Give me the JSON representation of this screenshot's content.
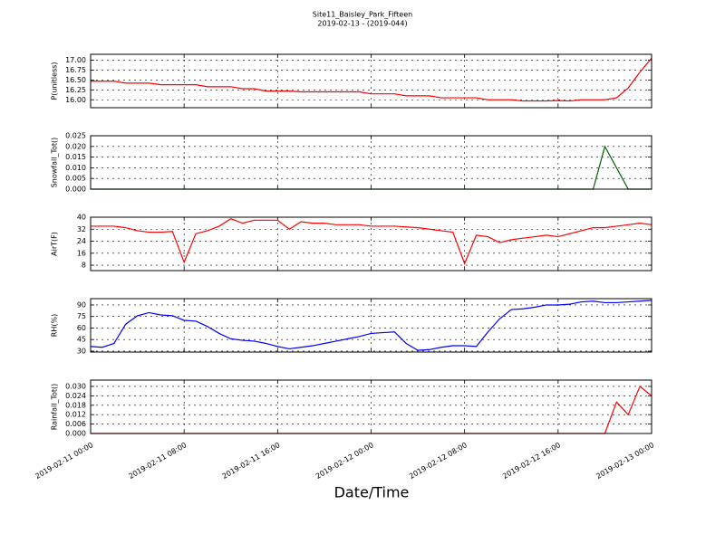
{
  "chart_data": [
    {
      "type": "line",
      "title": "Site11_Baisley_Park_Fifteen",
      "subtitle": "2019-02-13 - (2019-044)",
      "ylabel": "P(unitless)",
      "x": [
        "2019-02-11 00:00",
        "2019-02-11 01:00",
        "2019-02-11 02:00",
        "2019-02-11 03:00",
        "2019-02-11 04:00",
        "2019-02-11 05:00",
        "2019-02-11 06:00",
        "2019-02-11 07:00",
        "2019-02-11 08:00",
        "2019-02-11 09:00",
        "2019-02-11 10:00",
        "2019-02-11 11:00",
        "2019-02-11 12:00",
        "2019-02-11 13:00",
        "2019-02-11 14:00",
        "2019-02-11 15:00",
        "2019-02-11 16:00",
        "2019-02-11 17:00",
        "2019-02-11 18:00",
        "2019-02-11 19:00",
        "2019-02-11 20:00",
        "2019-02-11 21:00",
        "2019-02-11 22:00",
        "2019-02-11 23:00",
        "2019-02-12 00:00",
        "2019-02-12 01:00",
        "2019-02-12 02:00",
        "2019-02-12 03:00",
        "2019-02-12 04:00",
        "2019-02-12 05:00",
        "2019-02-12 06:00",
        "2019-02-12 07:00",
        "2019-02-12 08:00",
        "2019-02-12 09:00",
        "2019-02-12 10:00",
        "2019-02-12 11:00",
        "2019-02-12 12:00",
        "2019-02-12 13:00",
        "2019-02-12 14:00",
        "2019-02-12 15:00",
        "2019-02-12 16:00",
        "2019-02-12 17:00",
        "2019-02-12 18:00",
        "2019-02-12 19:00",
        "2019-02-12 20:00",
        "2019-02-12 21:00",
        "2019-02-12 22:00",
        "2019-02-12 23:00",
        "2019-02-13 00:00"
      ],
      "series": [
        {
          "color": "#ff0000",
          "values": [
            16.47,
            16.47,
            16.47,
            16.42,
            16.42,
            16.42,
            16.38,
            16.38,
            16.38,
            16.38,
            16.33,
            16.33,
            16.33,
            16.28,
            16.28,
            16.22,
            16.22,
            16.22,
            16.2,
            16.2,
            16.2,
            16.2,
            16.2,
            16.2,
            16.15,
            16.15,
            16.15,
            16.1,
            16.1,
            16.1,
            16.05,
            16.05,
            16.05,
            16.05,
            16.0,
            16.0,
            16.0,
            15.97,
            15.97,
            15.97,
            15.98,
            15.97,
            16.0,
            16.0,
            16.0,
            16.05,
            16.3,
            16.7,
            17.05
          ]
        }
      ],
      "xlim": [
        "2019-02-11 00:00",
        "2019-02-13 00:00"
      ],
      "xticks": [
        "2019-02-11 00:00",
        "2019-02-11 08:00",
        "2019-02-11 16:00",
        "2019-02-12 00:00",
        "2019-02-12 08:00",
        "2019-02-12 16:00",
        "2019-02-13 00:00"
      ],
      "ylim": [
        15.8,
        17.15
      ],
      "yticks": [
        {
          "value": 16,
          "label": "16.00"
        },
        {
          "value": 16.25,
          "label": "16.25"
        },
        {
          "value": 16.5,
          "label": "16.50"
        },
        {
          "value": 16.75,
          "label": "16.75"
        },
        {
          "value": 17,
          "label": "17.00"
        }
      ],
      "grid": true
    },
    {
      "type": "line",
      "ylabel": "Snowfall_Tot()",
      "x": [
        "2019-02-11 00:00",
        "2019-02-11 01:00",
        "2019-02-11 02:00",
        "2019-02-11 03:00",
        "2019-02-11 04:00",
        "2019-02-11 05:00",
        "2019-02-11 06:00",
        "2019-02-11 07:00",
        "2019-02-11 08:00",
        "2019-02-11 09:00",
        "2019-02-11 10:00",
        "2019-02-11 11:00",
        "2019-02-11 12:00",
        "2019-02-11 13:00",
        "2019-02-11 14:00",
        "2019-02-11 15:00",
        "2019-02-11 16:00",
        "2019-02-11 17:00",
        "2019-02-11 18:00",
        "2019-02-11 19:00",
        "2019-02-11 20:00",
        "2019-02-11 21:00",
        "2019-02-11 22:00",
        "2019-02-11 23:00",
        "2019-02-12 00:00",
        "2019-02-12 01:00",
        "2019-02-12 02:00",
        "2019-02-12 03:00",
        "2019-02-12 04:00",
        "2019-02-12 05:00",
        "2019-02-12 06:00",
        "2019-02-12 07:00",
        "2019-02-12 08:00",
        "2019-02-12 09:00",
        "2019-02-12 10:00",
        "2019-02-12 11:00",
        "2019-02-12 12:00",
        "2019-02-12 13:00",
        "2019-02-12 14:00",
        "2019-02-12 15:00",
        "2019-02-12 16:00",
        "2019-02-12 17:00",
        "2019-02-12 18:00",
        "2019-02-12 19:00",
        "2019-02-12 20:00",
        "2019-02-12 21:00",
        "2019-02-12 22:00",
        "2019-02-12 23:00",
        "2019-02-13 00:00"
      ],
      "series": [
        {
          "color": "#006400",
          "values": [
            0,
            0,
            0,
            0,
            0,
            0,
            0,
            0,
            0,
            0,
            0,
            0,
            0,
            0,
            0,
            0,
            0,
            0,
            0,
            0,
            0,
            0,
            0,
            0,
            0,
            0,
            0,
            0,
            0,
            0,
            0,
            0,
            0,
            0,
            0,
            0,
            0,
            0,
            0,
            0,
            0,
            0,
            0,
            0,
            0.02,
            0.01,
            0,
            0,
            0
          ]
        }
      ],
      "xlim": [
        "2019-02-11 00:00",
        "2019-02-13 00:00"
      ],
      "xticks": [
        "2019-02-11 00:00",
        "2019-02-11 08:00",
        "2019-02-11 16:00",
        "2019-02-12 00:00",
        "2019-02-12 08:00",
        "2019-02-12 16:00",
        "2019-02-13 00:00"
      ],
      "ylim": [
        0,
        0.025
      ],
      "yticks": [
        {
          "value": 0,
          "label": "0.000"
        },
        {
          "value": 0.005,
          "label": "0.005"
        },
        {
          "value": 0.01,
          "label": "0.010"
        },
        {
          "value": 0.015,
          "label": "0.015"
        },
        {
          "value": 0.02,
          "label": "0.020"
        },
        {
          "value": 0.025,
          "label": "0.025"
        }
      ],
      "grid": true
    },
    {
      "type": "line",
      "ylabel": "AirT(F)",
      "x": [
        "2019-02-11 00:00",
        "2019-02-11 01:00",
        "2019-02-11 02:00",
        "2019-02-11 03:00",
        "2019-02-11 04:00",
        "2019-02-11 05:00",
        "2019-02-11 06:00",
        "2019-02-11 07:00",
        "2019-02-11 08:00",
        "2019-02-11 09:00",
        "2019-02-11 10:00",
        "2019-02-11 11:00",
        "2019-02-11 12:00",
        "2019-02-11 13:00",
        "2019-02-11 14:00",
        "2019-02-11 15:00",
        "2019-02-11 16:00",
        "2019-02-11 17:00",
        "2019-02-11 18:00",
        "2019-02-11 19:00",
        "2019-02-11 20:00",
        "2019-02-11 21:00",
        "2019-02-11 22:00",
        "2019-02-11 23:00",
        "2019-02-12 00:00",
        "2019-02-12 01:00",
        "2019-02-12 02:00",
        "2019-02-12 03:00",
        "2019-02-12 04:00",
        "2019-02-12 05:00",
        "2019-02-12 06:00",
        "2019-02-12 07:00",
        "2019-02-12 08:00",
        "2019-02-12 09:00",
        "2019-02-12 10:00",
        "2019-02-12 11:00",
        "2019-02-12 12:00",
        "2019-02-12 13:00",
        "2019-02-12 14:00",
        "2019-02-12 15:00",
        "2019-02-12 16:00",
        "2019-02-12 17:00",
        "2019-02-12 18:00",
        "2019-02-12 19:00",
        "2019-02-12 20:00",
        "2019-02-12 21:00",
        "2019-02-12 22:00",
        "2019-02-12 23:00",
        "2019-02-13 00:00"
      ],
      "series": [
        {
          "color": "#ff0000",
          "values": [
            34,
            34,
            34,
            33,
            31,
            30,
            30,
            30.5,
            10,
            29,
            31,
            34,
            39,
            36,
            38,
            38,
            38,
            32,
            37,
            36,
            36,
            35,
            35,
            35,
            34,
            34,
            34,
            33.5,
            33,
            32,
            31,
            30,
            9,
            28,
            27,
            23,
            25,
            26,
            27,
            28,
            27,
            29,
            31,
            33,
            33,
            34,
            35,
            36,
            35
          ]
        }
      ],
      "xlim": [
        "2019-02-11 00:00",
        "2019-02-13 00:00"
      ],
      "xticks": [
        "2019-02-11 00:00",
        "2019-02-11 08:00",
        "2019-02-11 16:00",
        "2019-02-12 00:00",
        "2019-02-12 08:00",
        "2019-02-12 16:00",
        "2019-02-13 00:00"
      ],
      "ylim": [
        4.4,
        40
      ],
      "yticks": [
        8,
        16,
        24,
        32,
        40
      ],
      "grid": true
    },
    {
      "type": "line",
      "ylabel": "RH(%)",
      "x": [
        "2019-02-11 00:00",
        "2019-02-11 01:00",
        "2019-02-11 02:00",
        "2019-02-11 03:00",
        "2019-02-11 04:00",
        "2019-02-11 05:00",
        "2019-02-11 06:00",
        "2019-02-11 07:00",
        "2019-02-11 08:00",
        "2019-02-11 09:00",
        "2019-02-11 10:00",
        "2019-02-11 11:00",
        "2019-02-11 12:00",
        "2019-02-11 13:00",
        "2019-02-11 14:00",
        "2019-02-11 15:00",
        "2019-02-11 16:00",
        "2019-02-11 17:00",
        "2019-02-11 18:00",
        "2019-02-11 19:00",
        "2019-02-11 20:00",
        "2019-02-11 21:00",
        "2019-02-11 22:00",
        "2019-02-11 23:00",
        "2019-02-12 00:00",
        "2019-02-12 01:00",
        "2019-02-12 02:00",
        "2019-02-12 03:00",
        "2019-02-12 04:00",
        "2019-02-12 05:00",
        "2019-02-12 06:00",
        "2019-02-12 07:00",
        "2019-02-12 08:00",
        "2019-02-12 09:00",
        "2019-02-12 10:00",
        "2019-02-12 11:00",
        "2019-02-12 12:00",
        "2019-02-12 13:00",
        "2019-02-12 14:00",
        "2019-02-12 15:00",
        "2019-02-12 16:00",
        "2019-02-12 17:00",
        "2019-02-12 18:00",
        "2019-02-12 19:00",
        "2019-02-12 20:00",
        "2019-02-12 21:00",
        "2019-02-12 22:00",
        "2019-02-12 23:00",
        "2019-02-13 00:00"
      ],
      "series": [
        {
          "color": "#0000ff",
          "values": [
            36,
            35,
            40,
            65,
            76,
            80,
            77,
            76,
            70,
            69,
            62,
            53,
            46,
            44,
            43,
            40,
            36,
            33,
            35,
            37,
            40,
            43,
            46,
            49,
            53,
            54,
            55,
            40,
            31,
            32,
            35,
            37,
            37,
            36,
            55,
            72,
            84,
            85,
            87,
            90,
            90,
            91,
            94,
            95,
            93,
            93,
            94,
            95,
            96
          ]
        }
      ],
      "xlim": [
        "2019-02-11 00:00",
        "2019-02-13 00:00"
      ],
      "xticks": [
        "2019-02-11 00:00",
        "2019-02-11 08:00",
        "2019-02-11 16:00",
        "2019-02-12 00:00",
        "2019-02-12 08:00",
        "2019-02-12 16:00",
        "2019-02-13 00:00"
      ],
      "ylim": [
        28.8,
        98.2
      ],
      "yticks": [
        30,
        45,
        60,
        75,
        90
      ],
      "grid": true
    },
    {
      "type": "line",
      "ylabel": "Rainfall_Tot()",
      "xlabel": "Date/Time",
      "x": [
        "2019-02-11 00:00",
        "2019-02-11 01:00",
        "2019-02-11 02:00",
        "2019-02-11 03:00",
        "2019-02-11 04:00",
        "2019-02-11 05:00",
        "2019-02-11 06:00",
        "2019-02-11 07:00",
        "2019-02-11 08:00",
        "2019-02-11 09:00",
        "2019-02-11 10:00",
        "2019-02-11 11:00",
        "2019-02-11 12:00",
        "2019-02-11 13:00",
        "2019-02-11 14:00",
        "2019-02-11 15:00",
        "2019-02-11 16:00",
        "2019-02-11 17:00",
        "2019-02-11 18:00",
        "2019-02-11 19:00",
        "2019-02-11 20:00",
        "2019-02-11 21:00",
        "2019-02-11 22:00",
        "2019-02-11 23:00",
        "2019-02-12 00:00",
        "2019-02-12 01:00",
        "2019-02-12 02:00",
        "2019-02-12 03:00",
        "2019-02-12 04:00",
        "2019-02-12 05:00",
        "2019-02-12 06:00",
        "2019-02-12 07:00",
        "2019-02-12 08:00",
        "2019-02-12 09:00",
        "2019-02-12 10:00",
        "2019-02-12 11:00",
        "2019-02-12 12:00",
        "2019-02-12 13:00",
        "2019-02-12 14:00",
        "2019-02-12 15:00",
        "2019-02-12 16:00",
        "2019-02-12 17:00",
        "2019-02-12 18:00",
        "2019-02-12 19:00",
        "2019-02-12 20:00",
        "2019-02-12 21:00",
        "2019-02-12 22:00",
        "2019-02-12 23:00",
        "2019-02-13 00:00"
      ],
      "series": [
        {
          "color": "#ff0000",
          "values": [
            0,
            0,
            0,
            0,
            0,
            0,
            0,
            0,
            0,
            0,
            0,
            0,
            0,
            0,
            0,
            0,
            0,
            0,
            0,
            0,
            0,
            0,
            0,
            0,
            0,
            0,
            0,
            0,
            0,
            0,
            0,
            0,
            0,
            0,
            0,
            0,
            0,
            0,
            0,
            0,
            0,
            0,
            0,
            0,
            0,
            0.02,
            0.012,
            0.03,
            0.024
          ]
        }
      ],
      "xlim": [
        "2019-02-11 00:00",
        "2019-02-13 00:00"
      ],
      "xticks": [
        "2019-02-11 00:00",
        "2019-02-11 08:00",
        "2019-02-11 16:00",
        "2019-02-12 00:00",
        "2019-02-12 08:00",
        "2019-02-12 16:00",
        "2019-02-13 00:00"
      ],
      "ylim": [
        0,
        0.034
      ],
      "yticks": [
        {
          "value": 0,
          "label": "0.000"
        },
        {
          "value": 0.006,
          "label": "0.006"
        },
        {
          "value": 0.012,
          "label": "0.012"
        },
        {
          "value": 0.018,
          "label": "0.018"
        },
        {
          "value": 0.024,
          "label": "0.024"
        },
        {
          "value": 0.03,
          "label": "0.030"
        }
      ],
      "grid": true
    }
  ]
}
